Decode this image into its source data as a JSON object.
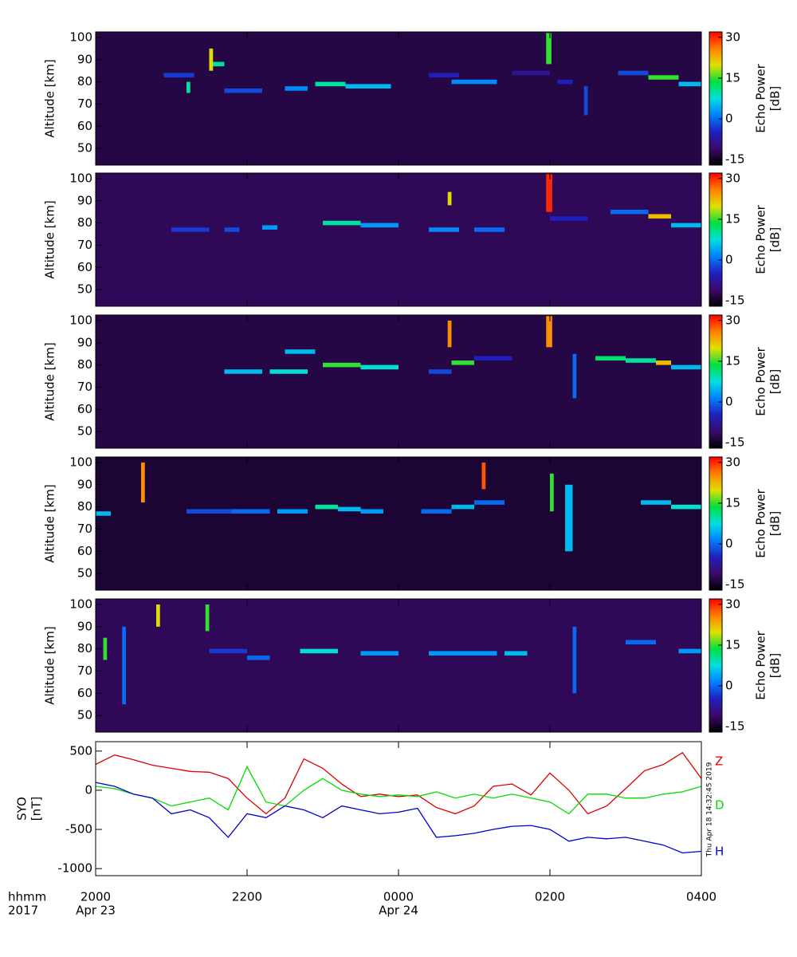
{
  "colorscale": [
    "#000000",
    "#3a0a6a",
    "#2020c0",
    "#0080ff",
    "#00e0e0",
    "#00e040",
    "#e0e000",
    "#ff8000",
    "#ff0000"
  ],
  "timestamp": "Thu Apr 18 14:32:45 2019",
  "x_label_lines": [
    "hhmm",
    "2017"
  ],
  "date_labels": [
    {
      "value": 20,
      "label": "Apr 23"
    },
    {
      "value": 24,
      "label": "Apr 24"
    }
  ],
  "chart_data": [
    {
      "type": "heatmap",
      "ylabel": "Altitude [km]",
      "zlabel": [
        "Echo Power",
        "[dB]"
      ],
      "xlim": [
        20,
        28
      ],
      "ylim": [
        42.5,
        102.5
      ],
      "yticks": [
        50,
        60,
        70,
        80,
        90,
        100
      ],
      "zlim": [
        -17,
        32
      ],
      "zticks": [
        -15,
        0,
        15,
        30
      ],
      "background": -13,
      "echoes": [
        [
          21.7,
          22.2,
          75,
          77,
          -2
        ],
        [
          22.5,
          22.8,
          76,
          78,
          2
        ],
        [
          22.9,
          23.3,
          78,
          80,
          10
        ],
        [
          23.3,
          23.9,
          77,
          79,
          5
        ],
        [
          24.4,
          24.8,
          82,
          84,
          -5
        ],
        [
          24.7,
          25.3,
          79,
          81,
          2
        ],
        [
          25.5,
          26.0,
          83,
          85,
          -8
        ],
        [
          26.1,
          26.3,
          79,
          81,
          -5
        ],
        [
          26.9,
          27.3,
          83,
          85,
          -2
        ],
        [
          27.3,
          27.7,
          81,
          83,
          15
        ],
        [
          27.7,
          28.0,
          78,
          80,
          5
        ],
        [
          20.9,
          21.3,
          82,
          84,
          -3
        ],
        [
          21.5,
          21.7,
          87,
          89,
          10
        ],
        [
          21.2,
          21.25,
          75,
          80,
          10
        ],
        [
          21.5,
          21.55,
          85,
          95,
          20
        ],
        [
          25.95,
          26.02,
          88,
          102,
          15
        ],
        [
          26.45,
          26.5,
          65,
          78,
          -2
        ]
      ]
    },
    {
      "type": "heatmap",
      "ylabel": "Altitude [km]",
      "zlabel": [
        "Echo Power",
        "[dB]"
      ],
      "xlim": [
        20,
        28
      ],
      "ylim": [
        42.5,
        102.5
      ],
      "yticks": [
        50,
        60,
        70,
        80,
        90,
        100
      ],
      "zlim": [
        -17,
        32
      ],
      "zticks": [
        -15,
        0,
        15,
        30
      ],
      "background": -12,
      "echoes": [
        [
          21.0,
          21.5,
          76,
          78,
          -3
        ],
        [
          21.7,
          21.9,
          76,
          78,
          -2
        ],
        [
          22.2,
          22.4,
          77,
          79,
          3
        ],
        [
          23.0,
          23.5,
          79,
          81,
          10
        ],
        [
          23.5,
          24.0,
          78,
          80,
          3
        ],
        [
          24.4,
          24.8,
          76,
          78,
          2
        ],
        [
          25.0,
          25.4,
          76,
          78,
          0
        ],
        [
          26.0,
          26.5,
          81,
          83,
          -5
        ],
        [
          26.8,
          27.3,
          84,
          86,
          0
        ],
        [
          27.3,
          27.6,
          82,
          84,
          22
        ],
        [
          27.6,
          28.0,
          78,
          80,
          5
        ],
        [
          25.95,
          26.03,
          85,
          102,
          30
        ],
        [
          24.65,
          24.7,
          88,
          94,
          20
        ]
      ]
    },
    {
      "type": "heatmap",
      "ylabel": "Altitude [km]",
      "zlabel": [
        "Echo Power",
        "[dB]"
      ],
      "xlim": [
        20,
        28
      ],
      "ylim": [
        42.5,
        102.5
      ],
      "yticks": [
        50,
        60,
        70,
        80,
        90,
        100
      ],
      "zlim": [
        -17,
        32
      ],
      "zticks": [
        -15,
        0,
        15,
        30
      ],
      "background": -13,
      "echoes": [
        [
          21.7,
          22.2,
          76,
          78,
          5
        ],
        [
          22.3,
          22.8,
          76,
          78,
          8
        ],
        [
          23.0,
          23.5,
          79,
          81,
          15
        ],
        [
          23.5,
          24.0,
          78,
          80,
          8
        ],
        [
          24.4,
          24.7,
          76,
          78,
          -2
        ],
        [
          24.7,
          25.0,
          80,
          82,
          15
        ],
        [
          25.0,
          25.5,
          82,
          84,
          -5
        ],
        [
          26.6,
          27.0,
          82,
          84,
          12
        ],
        [
          27.0,
          27.4,
          81,
          83,
          10
        ],
        [
          27.4,
          27.6,
          80,
          82,
          22
        ],
        [
          27.6,
          28.0,
          78,
          80,
          5
        ],
        [
          22.5,
          22.9,
          85,
          87,
          5
        ],
        [
          25.95,
          26.03,
          88,
          102,
          25
        ],
        [
          24.65,
          24.7,
          88,
          100,
          25
        ],
        [
          26.3,
          26.35,
          65,
          85,
          0
        ]
      ]
    },
    {
      "type": "heatmap",
      "ylabel": "Altitude [km]",
      "zlabel": [
        "Echo Power",
        "[dB]"
      ],
      "xlim": [
        20,
        28
      ],
      "ylim": [
        42.5,
        102.5
      ],
      "yticks": [
        50,
        60,
        70,
        80,
        90,
        100
      ],
      "zlim": [
        -17,
        32
      ],
      "zticks": [
        -15,
        0,
        15,
        30
      ],
      "background": -14,
      "echoes": [
        [
          20.0,
          20.2,
          76,
          78,
          5
        ],
        [
          21.2,
          21.8,
          77,
          79,
          -2
        ],
        [
          21.8,
          22.3,
          77,
          79,
          0
        ],
        [
          22.4,
          22.8,
          77,
          79,
          3
        ],
        [
          22.9,
          23.2,
          79,
          81,
          10
        ],
        [
          23.2,
          23.5,
          78,
          80,
          5
        ],
        [
          23.5,
          23.8,
          77,
          79,
          3
        ],
        [
          24.3,
          24.7,
          77,
          79,
          0
        ],
        [
          24.7,
          25.0,
          79,
          81,
          5
        ],
        [
          25.0,
          25.4,
          81,
          83,
          0
        ],
        [
          27.2,
          27.6,
          81,
          83,
          5
        ],
        [
          27.6,
          28.0,
          79,
          81,
          8
        ],
        [
          20.6,
          20.65,
          82,
          100,
          25
        ],
        [
          25.1,
          25.15,
          88,
          100,
          28
        ],
        [
          26.2,
          26.3,
          60,
          90,
          5
        ],
        [
          26.0,
          26.05,
          78,
          95,
          15
        ]
      ]
    },
    {
      "type": "heatmap",
      "ylabel": "Altitude [km]",
      "zlabel": [
        "Echo Power",
        "[dB]"
      ],
      "xlim": [
        20,
        28
      ],
      "ylim": [
        42.5,
        102.5
      ],
      "yticks": [
        50,
        60,
        70,
        80,
        90,
        100
      ],
      "zlim": [
        -17,
        32
      ],
      "zticks": [
        -15,
        0,
        15,
        30
      ],
      "background": -12,
      "echoes": [
        [
          21.5,
          22.0,
          78,
          80,
          -3
        ],
        [
          22.0,
          22.3,
          75,
          77,
          0
        ],
        [
          22.7,
          23.2,
          78,
          80,
          8
        ],
        [
          23.5,
          24.0,
          77,
          79,
          3
        ],
        [
          24.4,
          25.3,
          77,
          79,
          3
        ],
        [
          25.4,
          25.7,
          77,
          79,
          5
        ],
        [
          27.0,
          27.4,
          82,
          84,
          0
        ],
        [
          27.7,
          28.0,
          78,
          80,
          3
        ],
        [
          20.35,
          20.4,
          55,
          90,
          0
        ],
        [
          20.1,
          20.15,
          75,
          85,
          15
        ],
        [
          20.8,
          20.85,
          90,
          100,
          20
        ],
        [
          21.45,
          21.5,
          88,
          100,
          15
        ],
        [
          26.3,
          26.35,
          60,
          90,
          0
        ]
      ]
    },
    {
      "type": "line",
      "ylabel_lines": [
        "SYO",
        "[nT]"
      ],
      "xlim": [
        20,
        28
      ],
      "ylim": [
        -1090,
        620
      ],
      "yticks": [
        500,
        0,
        -500,
        -1000
      ],
      "xticks": [
        {
          "value": 20,
          "label": "2000"
        },
        {
          "value": 22,
          "label": "2200"
        },
        {
          "value": 24,
          "label": "0000"
        },
        {
          "value": 26,
          "label": "0200"
        },
        {
          "value": 28,
          "label": "0400"
        }
      ],
      "x": [
        20,
        20.25,
        20.5,
        20.75,
        21,
        21.25,
        21.5,
        21.75,
        22,
        22.25,
        22.5,
        22.75,
        23,
        23.25,
        23.5,
        23.75,
        24,
        24.25,
        24.5,
        24.75,
        25,
        25.25,
        25.5,
        25.75,
        26,
        26.25,
        26.5,
        26.75,
        27,
        27.25,
        27.5,
        27.75,
        28
      ],
      "series": [
        {
          "name": "Z",
          "color": "#dd0000",
          "values": [
            330,
            450,
            390,
            320,
            280,
            240,
            230,
            150,
            -100,
            -300,
            -100,
            400,
            280,
            80,
            -80,
            -50,
            -80,
            -60,
            -220,
            -300,
            -200,
            50,
            80,
            -60,
            220,
            0,
            -300,
            -200,
            20,
            250,
            330,
            480,
            150
          ]
        },
        {
          "name": "D",
          "color": "#00dd00",
          "values": [
            50,
            20,
            -50,
            -100,
            -200,
            -150,
            -100,
            -250,
            300,
            -150,
            -200,
            0,
            150,
            0,
            -50,
            -80,
            -60,
            -80,
            -20,
            -100,
            -50,
            -100,
            -50,
            -100,
            -150,
            -300,
            -50,
            -50,
            -100,
            -100,
            -50,
            -20,
            50
          ]
        },
        {
          "name": "H",
          "color": "#0000cc",
          "values": [
            100,
            50,
            -50,
            -100,
            -300,
            -250,
            -350,
            -600,
            -300,
            -350,
            -200,
            -250,
            -350,
            -200,
            -250,
            -300,
            -280,
            -230,
            -600,
            -580,
            -550,
            -500,
            -460,
            -450,
            -500,
            -650,
            -600,
            -620,
            -600,
            -650,
            -700,
            -800,
            -780
          ]
        }
      ]
    }
  ]
}
